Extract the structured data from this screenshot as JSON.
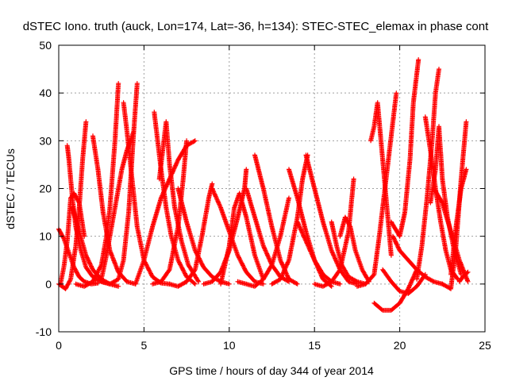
{
  "chart_data": {
    "type": "scatter",
    "title": "dSTEC Iono. truth (auck, Lon=174, Lat=-36, h=134): STEC-STEC_elemax in phase cont",
    "xlabel": "GPS time / hours of day 344 of year 2014",
    "ylabel": "dSTEC  / TECUs",
    "xlim": [
      0,
      25
    ],
    "ylim": [
      -10,
      50
    ],
    "xticks": [
      0,
      5,
      10,
      15,
      20,
      25
    ],
    "yticks": [
      -10,
      0,
      10,
      20,
      30,
      40,
      50
    ],
    "grid": true,
    "marker": "plus",
    "color": "#ff0000",
    "series": [
      {
        "x": [
          0.0,
          0.3,
          0.6,
          0.9,
          1.2,
          1.5,
          1.9,
          2.3
        ],
        "y": [
          11.5,
          9.5,
          6.5,
          3.5,
          1.5,
          0.5,
          0.0,
          0.2
        ]
      },
      {
        "x": [
          0.1,
          0.3,
          0.5,
          0.7,
          0.9,
          1.2,
          1.5
        ],
        "y": [
          0.0,
          3.5,
          9.0,
          18.0,
          19.0,
          17.0,
          10.0
        ]
      },
      {
        "x": [
          0.5,
          0.6,
          0.8,
          1.0,
          1.3,
          1.6,
          2.0,
          2.5,
          3.0
        ],
        "y": [
          29.0,
          26.0,
          18.0,
          12.0,
          7.0,
          3.5,
          1.5,
          0.5,
          0.0
        ]
      },
      {
        "x": [
          0.0,
          0.4,
          0.7,
          1.0,
          1.2,
          1.4,
          1.6
        ],
        "y": [
          0.0,
          -1.0,
          1.0,
          8.0,
          16.0,
          26.0,
          34.0
        ]
      },
      {
        "x": [
          0.8,
          1.2,
          1.6,
          2.0,
          2.5,
          3.0,
          3.5
        ],
        "y": [
          16.0,
          11.0,
          6.0,
          3.0,
          1.0,
          0.0,
          -0.5
        ]
      },
      {
        "x": [
          1.0,
          1.5,
          2.0,
          2.5,
          2.8,
          3.0,
          3.3,
          3.5
        ],
        "y": [
          0.0,
          -0.5,
          0.5,
          4.0,
          10.0,
          16.0,
          30.0,
          42.0
        ]
      },
      {
        "x": [
          2.0,
          2.3,
          2.6,
          3.0,
          3.5,
          4.0,
          4.5
        ],
        "y": [
          31.0,
          24.0,
          15.0,
          7.0,
          2.5,
          0.5,
          0.0
        ]
      },
      {
        "x": [
          2.5,
          2.8,
          3.1,
          3.4,
          3.7,
          4.0,
          4.4
        ],
        "y": [
          1.0,
          6.0,
          12.0,
          18.0,
          24.0,
          28.0,
          32.0
        ]
      },
      {
        "x": [
          2.5,
          3.0,
          3.5,
          3.8,
          4.1,
          4.4,
          4.6
        ],
        "y": [
          0.5,
          0.0,
          1.0,
          5.0,
          15.0,
          32.0,
          42.0
        ]
      },
      {
        "x": [
          3.8,
          4.0,
          4.3,
          4.6,
          5.0,
          5.5,
          6.0,
          6.5
        ],
        "y": [
          38.0,
          32.0,
          22.0,
          12.0,
          5.0,
          1.5,
          0.2,
          0.0
        ]
      },
      {
        "x": [
          4.5,
          5.0,
          5.5,
          6.0,
          6.5,
          7.0,
          7.5,
          8.0
        ],
        "y": [
          0.0,
          5.0,
          12.0,
          18.0,
          22.0,
          26.0,
          29.0,
          30.0
        ]
      },
      {
        "x": [
          5.6,
          5.8,
          6.0,
          6.3,
          6.6,
          7.0,
          7.5,
          8.0
        ],
        "y": [
          36.0,
          30.0,
          24.0,
          16.0,
          10.0,
          5.0,
          1.5,
          0.0
        ]
      },
      {
        "x": [
          5.9,
          6.1,
          6.3,
          6.5,
          6.8,
          7.2,
          7.6,
          8.2
        ],
        "y": [
          22.0,
          28.0,
          34.0,
          25.0,
          16.0,
          9.0,
          4.0,
          0.5
        ]
      },
      {
        "x": [
          5.5,
          6.0,
          6.5,
          7.0,
          7.3,
          7.5
        ],
        "y": [
          0.0,
          0.5,
          3.0,
          12.0,
          22.0,
          30.0
        ]
      },
      {
        "x": [
          6.5,
          7.0,
          7.5,
          8.0,
          8.4,
          8.8,
          9.0
        ],
        "y": [
          0.0,
          -0.5,
          0.5,
          3.0,
          10.0,
          18.0,
          21.0
        ]
      },
      {
        "x": [
          7.0,
          7.5,
          8.0,
          8.5,
          9.0,
          9.5,
          10.0
        ],
        "y": [
          20.0,
          13.0,
          7.0,
          3.5,
          1.5,
          0.5,
          0.0
        ]
      },
      {
        "x": [
          8.5,
          9.0,
          9.5,
          10.0,
          10.5,
          10.9,
          11.0
        ],
        "y": [
          0.0,
          0.5,
          2.5,
          7.0,
          14.0,
          20.0,
          24.0
        ]
      },
      {
        "x": [
          9.0,
          9.5,
          10.0,
          10.5,
          11.0,
          11.5,
          12.0
        ],
        "y": [
          20.0,
          16.0,
          11.0,
          6.0,
          2.5,
          0.5,
          0.0
        ]
      },
      {
        "x": [
          9.5,
          10.0,
          10.3,
          10.6,
          11.0,
          11.5,
          12.0
        ],
        "y": [
          0.0,
          8.0,
          16.0,
          19.0,
          14.0,
          6.0,
          1.0
        ]
      },
      {
        "x": [
          10.5,
          11.0,
          11.5,
          12.0,
          12.5,
          13.0,
          13.5
        ],
        "y": [
          0.5,
          0.0,
          -0.5,
          1.0,
          4.0,
          10.0,
          18.0
        ]
      },
      {
        "x": [
          11.5,
          12.0,
          12.5,
          13.0,
          13.5,
          14.0
        ],
        "y": [
          27.0,
          20.0,
          12.0,
          5.0,
          1.0,
          0.0
        ]
      },
      {
        "x": [
          11.0,
          11.5,
          12.0,
          12.5,
          13.0,
          13.5
        ],
        "y": [
          20.0,
          14.0,
          8.0,
          4.0,
          1.5,
          0.5
        ]
      },
      {
        "x": [
          12.5,
          13.0,
          13.5,
          14.0,
          14.3,
          14.6
        ],
        "y": [
          0.0,
          1.0,
          5.0,
          14.0,
          22.0,
          27.0
        ]
      },
      {
        "x": [
          13.5,
          14.0,
          14.5,
          15.0,
          15.5,
          16.0
        ],
        "y": [
          24.0,
          18.0,
          11.0,
          5.0,
          1.0,
          -0.5
        ]
      },
      {
        "x": [
          14.0,
          14.5,
          15.0,
          15.5,
          16.0,
          16.5
        ],
        "y": [
          13.0,
          9.0,
          5.0,
          2.0,
          0.5,
          0.0
        ]
      },
      {
        "x": [
          14.5,
          15.0,
          15.5,
          16.0,
          16.5,
          17.0,
          17.5
        ],
        "y": [
          27.0,
          20.0,
          13.0,
          7.0,
          3.0,
          0.5,
          0.0
        ]
      },
      {
        "x": [
          15.0,
          15.5,
          16.0,
          16.5,
          17.0,
          17.3
        ],
        "y": [
          0.0,
          -0.5,
          0.5,
          3.0,
          11.0,
          22.0
        ]
      },
      {
        "x": [
          16.0,
          16.3,
          16.6,
          17.0,
          17.5,
          18.0
        ],
        "y": [
          13.0,
          8.0,
          4.0,
          1.5,
          0.5,
          0.0
        ]
      },
      {
        "x": [
          16.5,
          16.8,
          17.1,
          17.4,
          17.8,
          18.2
        ],
        "y": [
          10.0,
          14.0,
          12.0,
          7.0,
          3.0,
          0.5
        ]
      },
      {
        "x": [
          17.5,
          18.0,
          18.5,
          18.8,
          19.2,
          19.6,
          19.8
        ],
        "y": [
          -0.5,
          0.0,
          2.0,
          10.0,
          22.0,
          34.0,
          40.0
        ]
      },
      {
        "x": [
          18.3,
          18.5,
          18.7,
          18.9,
          19.2,
          19.5
        ],
        "y": [
          30.0,
          33.0,
          38.0,
          30.0,
          18.0,
          6.0
        ]
      },
      {
        "x": [
          18.5,
          19.0,
          19.5,
          20.0,
          20.5,
          21.0
        ],
        "y": [
          -4.0,
          -5.5,
          -5.5,
          -4.0,
          -1.0,
          3.0
        ]
      },
      {
        "x": [
          19.0,
          19.5,
          20.0,
          20.5,
          21.0,
          21.5
        ],
        "y": [
          3.0,
          0.5,
          -1.5,
          -2.0,
          -0.5,
          2.0
        ]
      },
      {
        "x": [
          19.5,
          20.0,
          20.3,
          20.6,
          20.8,
          21.1
        ],
        "y": [
          13.0,
          10.0,
          15.0,
          26.0,
          38.0,
          47.0
        ]
      },
      {
        "x": [
          19.6,
          20.0,
          20.5,
          21.0,
          21.5,
          22.0,
          22.5
        ],
        "y": [
          10.0,
          7.0,
          5.0,
          3.0,
          1.5,
          0.5,
          0.0
        ]
      },
      {
        "x": [
          21.0,
          21.3,
          21.6,
          21.9,
          22.1,
          22.3
        ],
        "y": [
          1.0,
          8.0,
          18.0,
          30.0,
          40.0,
          45.0
        ]
      },
      {
        "x": [
          21.5,
          21.8,
          22.1,
          22.4,
          22.7,
          23.0,
          23.4
        ],
        "y": [
          35.0,
          28.0,
          20.0,
          13.0,
          7.0,
          3.0,
          1.0
        ]
      },
      {
        "x": [
          21.8,
          22.1,
          22.3,
          22.5,
          22.8,
          23.2,
          23.6
        ],
        "y": [
          17.0,
          24.0,
          33.0,
          22.0,
          14.0,
          7.0,
          2.0
        ]
      },
      {
        "x": [
          22.0,
          22.5,
          23.0,
          23.5,
          24.0
        ],
        "y": [
          20.0,
          17.0,
          11.0,
          5.0,
          0.5
        ]
      },
      {
        "x": [
          22.5,
          23.0,
          23.3,
          23.6,
          23.9
        ],
        "y": [
          0.0,
          -1.0,
          8.0,
          22.0,
          34.0
        ]
      },
      {
        "x": [
          23.0,
          23.3,
          23.6,
          23.9
        ],
        "y": [
          2.0,
          12.0,
          20.0,
          24.0
        ]
      },
      {
        "x": [
          23.5,
          23.7,
          24.0
        ],
        "y": [
          0.5,
          1.5,
          2.5
        ]
      }
    ]
  }
}
